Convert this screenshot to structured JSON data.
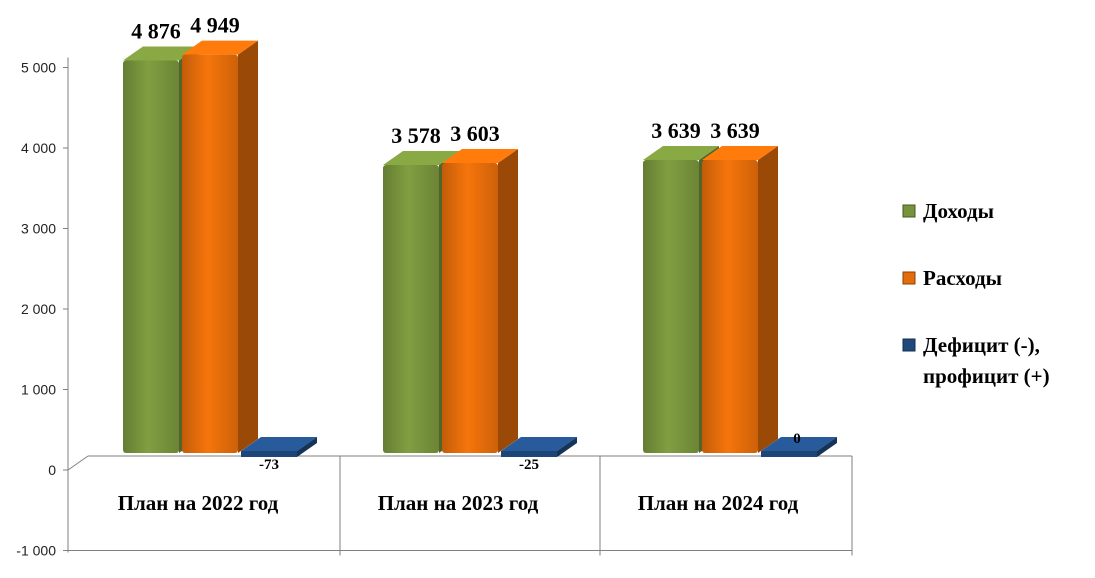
{
  "chart_data": {
    "type": "bar",
    "categories": [
      "План на 2022 год",
      "План на 2023 год",
      "План на 2024 год"
    ],
    "series": [
      {
        "name": "Доходы",
        "values": [
          4876,
          3578,
          3639
        ],
        "labels": [
          "4 876",
          "3 578",
          "3 639"
        ],
        "color": "#77933C"
      },
      {
        "name": "Расходы",
        "values": [
          4949,
          3603,
          3639
        ],
        "labels": [
          "4 949",
          "3 603",
          "3 639"
        ],
        "color": "#E46C0A"
      },
      {
        "name": "Дефицит (-), профицит (+)",
        "legend_lines": [
          "Дефицит (-),",
          "профицит (+)"
        ],
        "values": [
          -73,
          -25,
          0
        ],
        "labels": [
          "-73",
          "-25",
          "0"
        ],
        "color": "#1F497D"
      }
    ],
    "yticks": [
      {
        "value": 5000,
        "label": "5 000"
      },
      {
        "value": 4000,
        "label": "4 000"
      },
      {
        "value": 3000,
        "label": "3 000"
      },
      {
        "value": 2000,
        "label": "2 000"
      },
      {
        "value": 1000,
        "label": "1 000"
      },
      {
        "value": 0,
        "label": "0"
      },
      {
        "value": -1000,
        "label": "-1 000"
      }
    ],
    "ylim": [
      -1000,
      5000
    ],
    "style": "3d-column",
    "legend_position": "right",
    "grid": false
  }
}
